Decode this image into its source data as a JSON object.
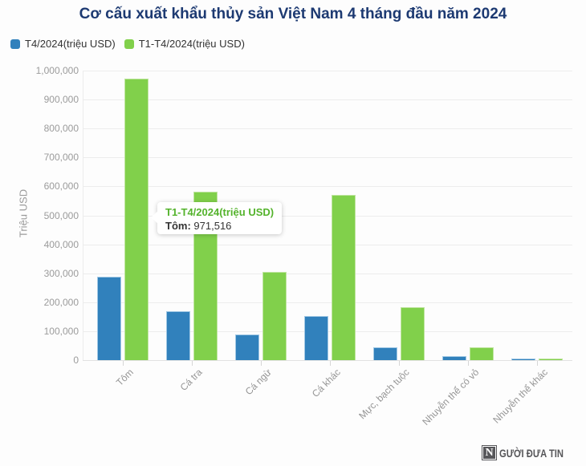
{
  "title": "Cơ cấu xuất khẩu thủy sản Việt Nam 4 tháng đầu năm 2024",
  "colors": {
    "title": "#1d3a72",
    "series_t4_blue": "#3181bc",
    "series_t1t4_green": "#81d04b",
    "tooltip_accent_green": "#54b32c"
  },
  "legend": [
    {
      "label": "T4/2024(triệu USD)",
      "color": "#3181bc"
    },
    {
      "label": "T1-T4/2024(triệu USD)",
      "color": "#7dce3e",
      "color_hex": "#7ccd35"
    }
  ],
  "chart_data": {
    "type": "bar",
    "title": "Cơ cấu xuất khẩu thủy sản Việt Nam 4 tháng đầu năm 2024",
    "categories": [
      "Tôm",
      "Cá tra",
      "Cá ngừ",
      "Cá khác",
      "Mực, bạch tuộc",
      "Nhuyễn thể có vỏ",
      "Nhuyễn thể khác"
    ],
    "series": [
      {
        "name": "T4/2024(triệu USD)",
        "color": "#3181bc",
        "border_color": "#a3c9e5",
        "values": [
          287000,
          170000,
          88000,
          153000,
          43000,
          15000,
          2000
        ]
      },
      {
        "name": "T1-T4/2024(triệu USD)",
        "color": "#81d04b",
        "border_color": "#c0e5a1",
        "values": [
          971516,
          581000,
          304000,
          570000,
          184000,
          44000,
          5000
        ]
      }
    ],
    "xlabel": "",
    "ylabel": "Triệu USD",
    "ylim": [
      0,
      1000000
    ],
    "ytick_step": 100000,
    "grid": true,
    "legend_position": "top-left"
  },
  "tooltip": {
    "series_label": "T1-T4/2024(triệu USD)",
    "category": "Tôm:",
    "value": "971,516"
  },
  "logo": {
    "initial": "N",
    "text": "GƯỜI ĐƯA TIN"
  }
}
